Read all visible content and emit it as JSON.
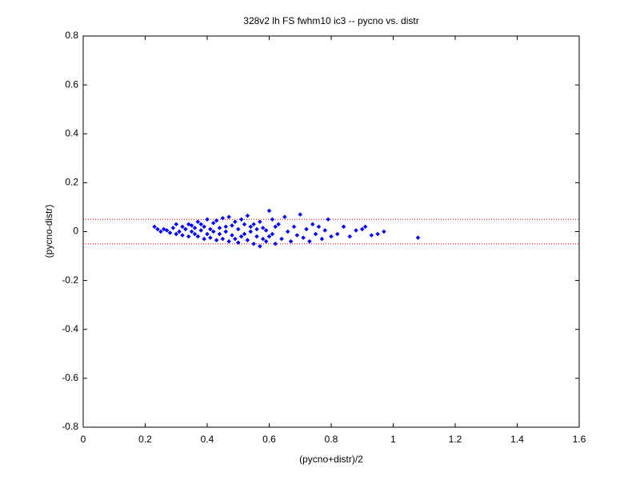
{
  "chart_data": {
    "type": "scatter",
    "title": "328v2 lh FS fwhm10 ic3 -- pycno vs. distr",
    "xlabel": "(pycno+distr)/2",
    "ylabel": "(pycno-distr)",
    "color": "#0000ff",
    "x": [
      0.23,
      0.24,
      0.25,
      0.26,
      0.27,
      0.28,
      0.29,
      0.3,
      0.3,
      0.31,
      0.32,
      0.32,
      0.33,
      0.34,
      0.34,
      0.35,
      0.35,
      0.36,
      0.36,
      0.37,
      0.37,
      0.38,
      0.38,
      0.39,
      0.39,
      0.4,
      0.4,
      0.41,
      0.41,
      0.42,
      0.42,
      0.43,
      0.43,
      0.44,
      0.44,
      0.45,
      0.45,
      0.46,
      0.46,
      0.47,
      0.47,
      0.48,
      0.48,
      0.49,
      0.49,
      0.5,
      0.5,
      0.51,
      0.51,
      0.52,
      0.52,
      0.53,
      0.53,
      0.54,
      0.54,
      0.55,
      0.55,
      0.56,
      0.56,
      0.57,
      0.57,
      0.58,
      0.58,
      0.59,
      0.59,
      0.6,
      0.6,
      0.61,
      0.61,
      0.62,
      0.62,
      0.63,
      0.64,
      0.65,
      0.66,
      0.67,
      0.68,
      0.69,
      0.7,
      0.71,
      0.72,
      0.73,
      0.74,
      0.75,
      0.76,
      0.77,
      0.78,
      0.79,
      0.8,
      0.82,
      0.84,
      0.86,
      0.88,
      0.9,
      0.91,
      0.93,
      0.95,
      0.97,
      1.08
    ],
    "values": [
      0.02,
      0.01,
      0.0,
      0.01,
      0.005,
      -0.005,
      0.015,
      0.03,
      -0.01,
      0.0,
      0.02,
      -0.015,
      0.01,
      0.03,
      -0.02,
      0.0,
      0.025,
      -0.01,
      0.015,
      0.04,
      -0.02,
      0.005,
      0.03,
      -0.03,
      0.02,
      0.05,
      -0.01,
      0.01,
      -0.025,
      0.035,
      0.0,
      -0.035,
      0.045,
      0.015,
      -0.01,
      0.055,
      -0.03,
      0.02,
      0.0,
      0.06,
      -0.04,
      0.025,
      -0.015,
      0.04,
      -0.03,
      0.01,
      -0.045,
      0.05,
      -0.02,
      0.03,
      -0.01,
      0.065,
      -0.035,
      0.0,
      0.02,
      -0.05,
      0.03,
      0.01,
      -0.02,
      0.04,
      -0.06,
      0.015,
      -0.03,
      0.005,
      -0.04,
      0.085,
      -0.02,
      0.05,
      -0.01,
      0.02,
      -0.05,
      0.03,
      -0.03,
      0.06,
      0.0,
      -0.04,
      0.02,
      -0.015,
      0.07,
      -0.025,
      0.01,
      -0.04,
      0.03,
      -0.01,
      0.02,
      -0.03,
      0.005,
      0.05,
      -0.02,
      -0.01,
      0.02,
      -0.02,
      0.005,
      0.01,
      0.02,
      -0.015,
      -0.01,
      0.0,
      -0.025
    ],
    "xlim": [
      0,
      1.6
    ],
    "xticks": [
      0,
      0.2,
      0.4,
      0.6,
      0.8,
      1,
      1.2,
      1.4,
      1.6
    ],
    "ylim": [
      -0.8,
      0.8
    ],
    "yticks": [
      -0.8,
      -0.6,
      -0.4,
      -0.2,
      0,
      0.2,
      0.4,
      0.6,
      0.8
    ],
    "hlines": [
      0.05,
      -0.05
    ],
    "hline_color": "#ff0000",
    "grid": false
  }
}
